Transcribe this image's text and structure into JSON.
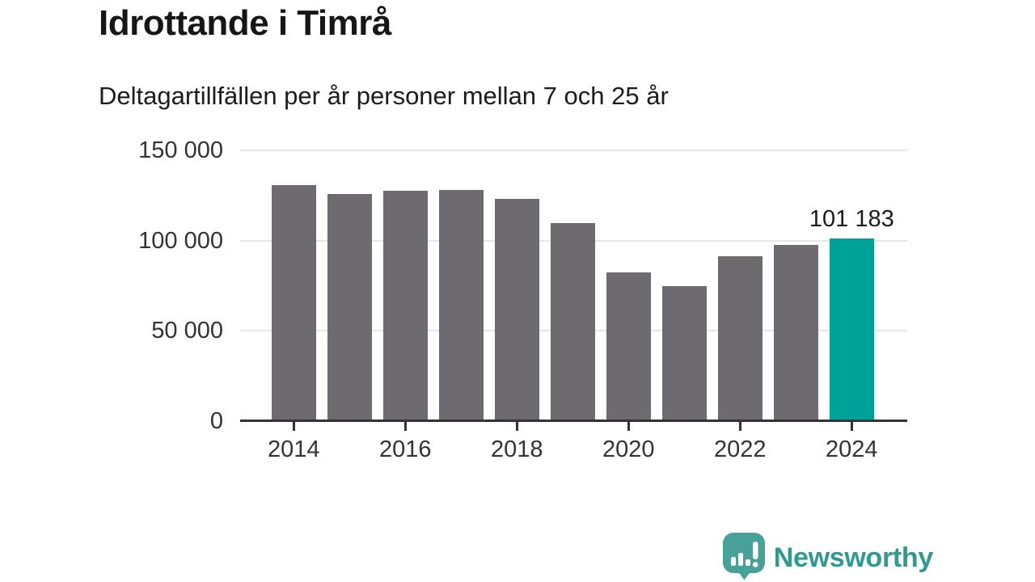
{
  "chart_data": {
    "type": "bar",
    "title": "Idrottande i Timrå",
    "subtitle": "Deltagartillfällen per år personer mellan 7 och 25 år",
    "categories": [
      2014,
      2015,
      2016,
      2017,
      2018,
      2019,
      2020,
      2021,
      2022,
      2023,
      2024
    ],
    "values": [
      131000,
      125800,
      127600,
      128000,
      123300,
      109600,
      82400,
      74900,
      91400,
      97700,
      101183
    ],
    "highlight_index": 10,
    "highlight_label": "101 183",
    "ylim": [
      0,
      150000
    ],
    "yticks": [
      {
        "value": 0,
        "label": "0"
      },
      {
        "value": 50000,
        "label": "50 000"
      },
      {
        "value": 100000,
        "label": "100 000"
      },
      {
        "value": 150000,
        "label": "150 000"
      }
    ],
    "xticks": [
      {
        "year": 2014,
        "label": "2014"
      },
      {
        "year": 2016,
        "label": "2016"
      },
      {
        "year": 2018,
        "label": "2018"
      },
      {
        "year": 2020,
        "label": "2020"
      },
      {
        "year": 2022,
        "label": "2022"
      },
      {
        "year": 2024,
        "label": "2024"
      }
    ],
    "grid": true,
    "legend": "none",
    "colors": {
      "bar": "#6e6b70",
      "highlight": "#00a298",
      "grid": "#e6e6e6",
      "axis": "#333333",
      "tick_text": "#333333",
      "annotation_text": "#1c1c1c"
    }
  },
  "footer": {
    "brand": "Newsworthy",
    "brand_color": "#2f9a8f",
    "logo_color": "#47a198",
    "logo_icon": "speech-bubble-bar-chart"
  }
}
